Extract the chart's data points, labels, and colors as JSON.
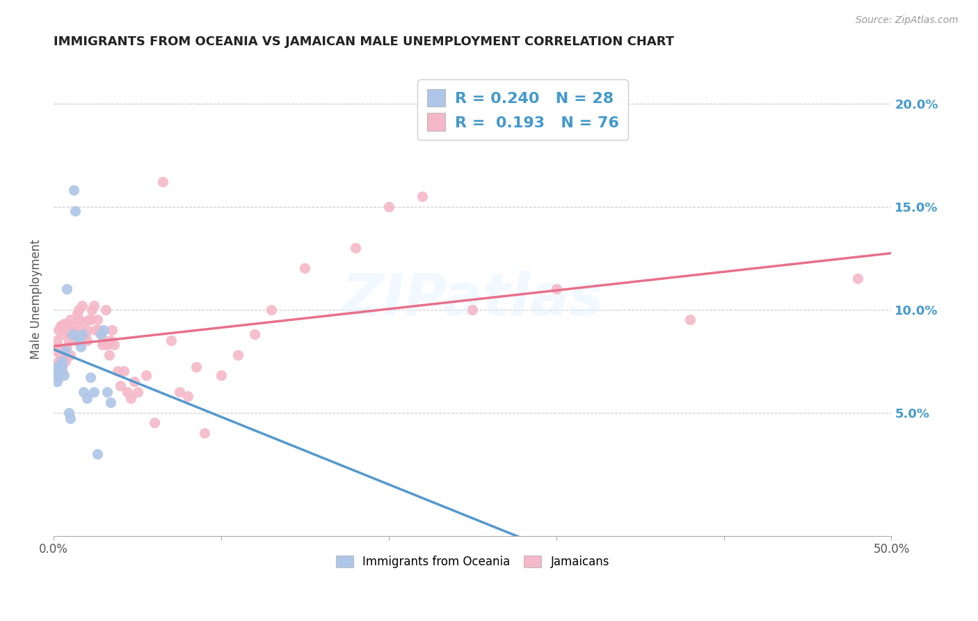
{
  "title": "IMMIGRANTS FROM OCEANIA VS JAMAICAN MALE UNEMPLOYMENT CORRELATION CHART",
  "source": "Source: ZipAtlas.com",
  "ylabel": "Male Unemployment",
  "watermark": "ZIPatlas",
  "legend_label1": "Immigrants from Oceania",
  "legend_label2": "Jamaicans",
  "R1": 0.24,
  "N1": 28,
  "R2": 0.193,
  "N2": 76,
  "blue_color": "#aec6e8",
  "pink_color": "#f4b8c8",
  "blue_line_color": "#5599cc",
  "pink_line_color": "#e8708a",
  "dashed_line_color": "#aaaaaa",
  "title_color": "#222222",
  "right_axis_color": "#4499cc",
  "background_color": "#ffffff",
  "blue_scatter_x": [
    0.001,
    0.002,
    0.002,
    0.003,
    0.003,
    0.004,
    0.005,
    0.005,
    0.006,
    0.007,
    0.008,
    0.009,
    0.01,
    0.011,
    0.012,
    0.013,
    0.015,
    0.016,
    0.017,
    0.018,
    0.02,
    0.022,
    0.024,
    0.026,
    0.028,
    0.03,
    0.032,
    0.034
  ],
  "blue_scatter_y": [
    0.068,
    0.065,
    0.072,
    0.07,
    0.067,
    0.073,
    0.072,
    0.075,
    0.068,
    0.08,
    0.11,
    0.05,
    0.047,
    0.088,
    0.158,
    0.148,
    0.085,
    0.082,
    0.088,
    0.06,
    0.057,
    0.067,
    0.06,
    0.03,
    0.088,
    0.09,
    0.06,
    0.055
  ],
  "pink_scatter_x": [
    0.001,
    0.001,
    0.002,
    0.002,
    0.003,
    0.003,
    0.003,
    0.004,
    0.004,
    0.005,
    0.005,
    0.006,
    0.006,
    0.007,
    0.007,
    0.008,
    0.008,
    0.009,
    0.01,
    0.01,
    0.011,
    0.012,
    0.012,
    0.013,
    0.014,
    0.015,
    0.015,
    0.016,
    0.017,
    0.018,
    0.019,
    0.02,
    0.02,
    0.021,
    0.022,
    0.023,
    0.024,
    0.025,
    0.026,
    0.027,
    0.028,
    0.029,
    0.03,
    0.031,
    0.032,
    0.033,
    0.034,
    0.035,
    0.036,
    0.038,
    0.04,
    0.042,
    0.044,
    0.046,
    0.048,
    0.05,
    0.055,
    0.06,
    0.065,
    0.07,
    0.075,
    0.08,
    0.085,
    0.09,
    0.1,
    0.11,
    0.12,
    0.13,
    0.15,
    0.18,
    0.2,
    0.22,
    0.25,
    0.3,
    0.38,
    0.48
  ],
  "pink_scatter_y": [
    0.072,
    0.08,
    0.068,
    0.085,
    0.075,
    0.082,
    0.09,
    0.078,
    0.092,
    0.07,
    0.088,
    0.08,
    0.093,
    0.075,
    0.09,
    0.082,
    0.093,
    0.085,
    0.078,
    0.095,
    0.088,
    0.09,
    0.092,
    0.085,
    0.098,
    0.095,
    0.1,
    0.09,
    0.102,
    0.094,
    0.088,
    0.09,
    0.085,
    0.095,
    0.095,
    0.1,
    0.102,
    0.09,
    0.095,
    0.09,
    0.088,
    0.083,
    0.085,
    0.1,
    0.083,
    0.078,
    0.085,
    0.09,
    0.083,
    0.07,
    0.063,
    0.07,
    0.06,
    0.057,
    0.065,
    0.06,
    0.068,
    0.045,
    0.162,
    0.085,
    0.06,
    0.058,
    0.072,
    0.04,
    0.068,
    0.078,
    0.088,
    0.1,
    0.12,
    0.13,
    0.15,
    0.155,
    0.1,
    0.11,
    0.095,
    0.115
  ],
  "xlim": [
    0,
    0.5
  ],
  "ylim": [
    -0.01,
    0.22
  ],
  "yticks": [
    0.05,
    0.1,
    0.15,
    0.2
  ],
  "ytick_labels": [
    "5.0%",
    "10.0%",
    "15.0%",
    "20.0%"
  ],
  "xtick_positions": [
    0.0,
    0.1,
    0.2,
    0.3,
    0.4,
    0.5
  ],
  "xtick_labels": [
    "0.0%",
    "",
    "",
    "",
    "",
    "50.0%"
  ]
}
